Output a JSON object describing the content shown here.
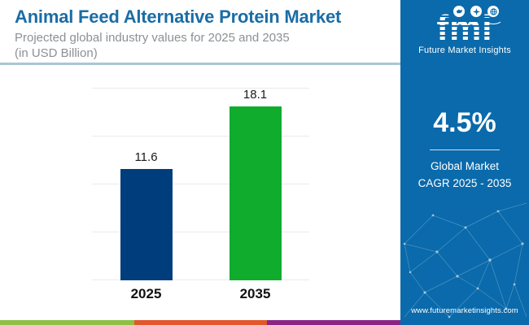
{
  "header": {
    "title": "Animal Feed Alternative Protein Market",
    "subtitle_line1": "Projected global industry values for 2025 and 2035",
    "subtitle_line2": "(in USD Billion)"
  },
  "chart_data": {
    "type": "bar",
    "categories": [
      "2025",
      "2035"
    ],
    "values": [
      11.6,
      18.1
    ],
    "title": "Animal Feed Alternative Protein Market",
    "xlabel": "",
    "ylabel": "USD Billion",
    "ylim": [
      0,
      20
    ],
    "gridlines": [
      0,
      5,
      10,
      15,
      20
    ],
    "grid": "horizontal-only, no y-axis tick labels",
    "legend_position": "none",
    "bar_colors": [
      "#003d7c",
      "#0fac2e"
    ]
  },
  "sidebar": {
    "logo": {
      "text": "fmi",
      "caption": "Future Market Insights",
      "icons": [
        "map-icon",
        "compass-icon",
        "globe-icon"
      ]
    },
    "cagr": {
      "value": "4.5%",
      "label_line1": "Global Market",
      "label_line2": "CAGR 2025 - 2035"
    },
    "website": "www.futuremarketinsights.com"
  },
  "footer": {
    "stripe_colors": [
      "#8dc044",
      "#e2572b",
      "#8a2585"
    ]
  },
  "colors": {
    "title_blue": "#1a6da6",
    "subtitle_gray": "#8c9094",
    "panel_blue": "#0a6aab",
    "header_divider": "#a9c6d8",
    "bar_2025": "#003d7c",
    "bar_2035": "#0fac2e"
  }
}
